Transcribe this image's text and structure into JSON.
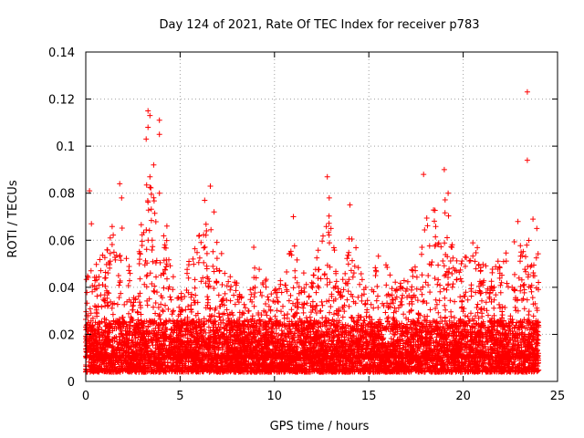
{
  "chart_data": {
    "type": "scatter",
    "title": "Day 124 of 2021, Rate Of TEC Index for receiver p783",
    "xlabel": "GPS time / hours",
    "ylabel": "ROTI / TECUs",
    "xlim": [
      0,
      25
    ],
    "ylim": [
      0,
      0.14
    ],
    "xticks": [
      0,
      5,
      10,
      15,
      20,
      25
    ],
    "xtick_labels": [
      "0",
      "5",
      "10",
      "15",
      "20",
      "25"
    ],
    "yticks": [
      0,
      0.02,
      0.04,
      0.06,
      0.08,
      0.1,
      0.12,
      0.14
    ],
    "ytick_labels": [
      "0",
      "0.02",
      "0.04",
      "0.06",
      "0.08",
      "0.1",
      "0.12",
      "0.14"
    ],
    "grid": true,
    "marker": "+",
    "color": "#ff0000",
    "series": [
      {
        "name": "ROTI",
        "note": "dense cloud of ~thousands of points, baseline ~0.005-0.02 over 0-24 h; listed points are notable peaks",
        "peaks": [
          {
            "x": 0.2,
            "y": 0.081
          },
          {
            "x": 0.3,
            "y": 0.067
          },
          {
            "x": 1.8,
            "y": 0.084
          },
          {
            "x": 1.9,
            "y": 0.078
          },
          {
            "x": 3.3,
            "y": 0.115
          },
          {
            "x": 3.4,
            "y": 0.113
          },
          {
            "x": 3.3,
            "y": 0.108
          },
          {
            "x": 3.2,
            "y": 0.103
          },
          {
            "x": 3.9,
            "y": 0.111
          },
          {
            "x": 3.9,
            "y": 0.105
          },
          {
            "x": 3.6,
            "y": 0.092
          },
          {
            "x": 3.4,
            "y": 0.087
          },
          {
            "x": 3.9,
            "y": 0.08
          },
          {
            "x": 4.3,
            "y": 0.066
          },
          {
            "x": 6.6,
            "y": 0.083
          },
          {
            "x": 6.3,
            "y": 0.077
          },
          {
            "x": 6.8,
            "y": 0.072
          },
          {
            "x": 8.9,
            "y": 0.057
          },
          {
            "x": 11.0,
            "y": 0.07
          },
          {
            "x": 12.8,
            "y": 0.087
          },
          {
            "x": 12.9,
            "y": 0.078
          },
          {
            "x": 14.0,
            "y": 0.075
          },
          {
            "x": 17.9,
            "y": 0.088
          },
          {
            "x": 19.0,
            "y": 0.09
          },
          {
            "x": 19.2,
            "y": 0.08
          },
          {
            "x": 22.9,
            "y": 0.068
          },
          {
            "x": 23.4,
            "y": 0.123
          },
          {
            "x": 23.4,
            "y": 0.094
          },
          {
            "x": 23.7,
            "y": 0.069
          },
          {
            "x": 23.9,
            "y": 0.065
          }
        ]
      }
    ]
  }
}
